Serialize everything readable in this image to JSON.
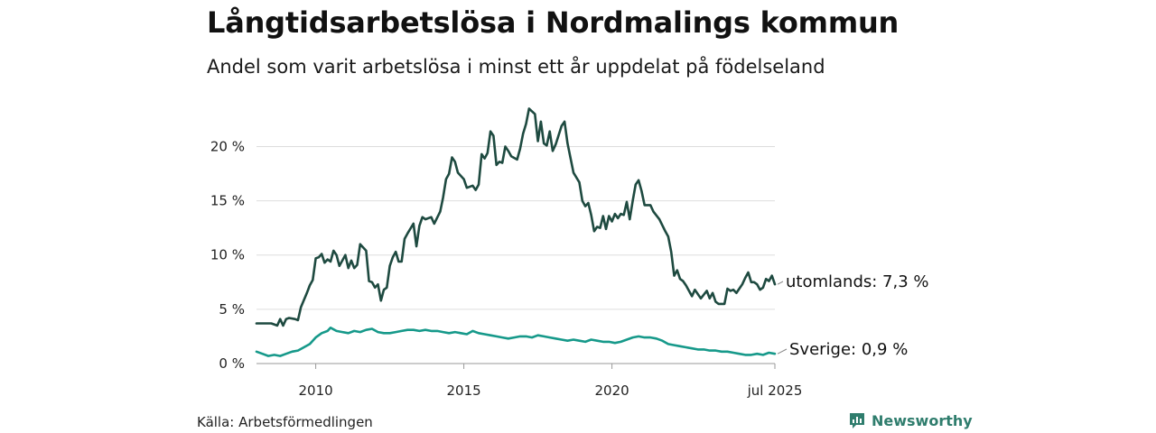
{
  "title": "Långtidsarbetslösa i Nordmalings kommun",
  "subtitle": "Andel som varit arbetslösa i minst ett år uppdelat på födelseland",
  "source": "Källa: Arbetsförmedlingen",
  "brand": {
    "name": "Newsworthy",
    "icon": "newsworthy-logo-icon"
  },
  "colors": {
    "utomlands": "#1e4a40",
    "sverige": "#16998a",
    "grid": "#dddddd",
    "axis": "#999999"
  },
  "chart_data": {
    "type": "line",
    "x_ticks": [
      {
        "x": 2010,
        "label": "2010"
      },
      {
        "x": 2015,
        "label": "2015"
      },
      {
        "x": 2020,
        "label": "2020"
      },
      {
        "x": 2025.5,
        "label": "jul 2025"
      }
    ],
    "y_ticks": [
      {
        "y": 0,
        "label": "0 %"
      },
      {
        "y": 5,
        "label": "5 %"
      },
      {
        "y": 10,
        "label": "10 %"
      },
      {
        "y": 15,
        "label": "15 %"
      },
      {
        "y": 20,
        "label": "20 %"
      }
    ],
    "xlim": [
      2008.0,
      2025.5
    ],
    "ylim": [
      0,
      23.7
    ],
    "grid": true,
    "series": [
      {
        "key": "utomlands",
        "label": "utomlands: 7,3 %",
        "points": [
          [
            2008.0,
            3.7
          ],
          [
            2008.5,
            3.7
          ],
          [
            2008.7,
            3.5
          ],
          [
            2008.8,
            4.1
          ],
          [
            2008.9,
            3.5
          ],
          [
            2009.0,
            4.1
          ],
          [
            2009.1,
            4.2
          ],
          [
            2009.3,
            4.1
          ],
          [
            2009.4,
            4.0
          ],
          [
            2009.5,
            5.2
          ],
          [
            2009.7,
            6.5
          ],
          [
            2009.8,
            7.2
          ],
          [
            2009.9,
            7.7
          ],
          [
            2010.0,
            9.7
          ],
          [
            2010.1,
            9.8
          ],
          [
            2010.2,
            10.1
          ],
          [
            2010.3,
            9.3
          ],
          [
            2010.4,
            9.6
          ],
          [
            2010.5,
            9.4
          ],
          [
            2010.6,
            10.4
          ],
          [
            2010.7,
            10.0
          ],
          [
            2010.8,
            9.0
          ],
          [
            2010.9,
            9.5
          ],
          [
            2011.0,
            10.0
          ],
          [
            2011.1,
            8.8
          ],
          [
            2011.2,
            9.5
          ],
          [
            2011.3,
            8.8
          ],
          [
            2011.4,
            9.1
          ],
          [
            2011.5,
            11.0
          ],
          [
            2011.7,
            10.4
          ],
          [
            2011.8,
            7.6
          ],
          [
            2011.9,
            7.5
          ],
          [
            2012.0,
            7.0
          ],
          [
            2012.1,
            7.3
          ],
          [
            2012.2,
            5.8
          ],
          [
            2012.3,
            6.8
          ],
          [
            2012.4,
            7.0
          ],
          [
            2012.5,
            9.0
          ],
          [
            2012.6,
            9.8
          ],
          [
            2012.7,
            10.3
          ],
          [
            2012.8,
            9.4
          ],
          [
            2012.9,
            9.4
          ],
          [
            2013.0,
            11.5
          ],
          [
            2013.1,
            12.0
          ],
          [
            2013.3,
            12.9
          ],
          [
            2013.4,
            10.8
          ],
          [
            2013.5,
            12.7
          ],
          [
            2013.6,
            13.5
          ],
          [
            2013.7,
            13.3
          ],
          [
            2013.9,
            13.5
          ],
          [
            2014.0,
            12.9
          ],
          [
            2014.2,
            14.0
          ],
          [
            2014.3,
            15.3
          ],
          [
            2014.4,
            17.0
          ],
          [
            2014.5,
            17.5
          ],
          [
            2014.6,
            19.0
          ],
          [
            2014.7,
            18.6
          ],
          [
            2014.8,
            17.6
          ],
          [
            2015.0,
            17.0
          ],
          [
            2015.1,
            16.2
          ],
          [
            2015.3,
            16.4
          ],
          [
            2015.4,
            16.0
          ],
          [
            2015.5,
            16.5
          ],
          [
            2015.6,
            19.3
          ],
          [
            2015.7,
            18.9
          ],
          [
            2015.8,
            19.4
          ],
          [
            2015.9,
            21.4
          ],
          [
            2016.0,
            21.0
          ],
          [
            2016.1,
            18.3
          ],
          [
            2016.2,
            18.6
          ],
          [
            2016.3,
            18.5
          ],
          [
            2016.4,
            20.0
          ],
          [
            2016.5,
            19.6
          ],
          [
            2016.6,
            19.1
          ],
          [
            2016.8,
            18.8
          ],
          [
            2016.9,
            19.8
          ],
          [
            2017.0,
            21.2
          ],
          [
            2017.1,
            22.1
          ],
          [
            2017.2,
            23.5
          ],
          [
            2017.4,
            23.0
          ],
          [
            2017.5,
            20.5
          ],
          [
            2017.6,
            22.3
          ],
          [
            2017.7,
            20.3
          ],
          [
            2017.8,
            20.1
          ],
          [
            2017.9,
            21.4
          ],
          [
            2018.0,
            19.6
          ],
          [
            2018.1,
            20.2
          ],
          [
            2018.3,
            21.9
          ],
          [
            2018.4,
            22.3
          ],
          [
            2018.5,
            20.3
          ],
          [
            2018.7,
            17.6
          ],
          [
            2018.9,
            16.7
          ],
          [
            2019.0,
            15.0
          ],
          [
            2019.1,
            14.5
          ],
          [
            2019.2,
            14.8
          ],
          [
            2019.3,
            13.7
          ],
          [
            2019.4,
            12.2
          ],
          [
            2019.5,
            12.6
          ],
          [
            2019.6,
            12.5
          ],
          [
            2019.7,
            13.6
          ],
          [
            2019.8,
            12.4
          ],
          [
            2019.9,
            13.6
          ],
          [
            2020.0,
            13.1
          ],
          [
            2020.1,
            13.8
          ],
          [
            2020.2,
            13.4
          ],
          [
            2020.3,
            13.8
          ],
          [
            2020.4,
            13.7
          ],
          [
            2020.5,
            14.9
          ],
          [
            2020.6,
            13.3
          ],
          [
            2020.7,
            15.0
          ],
          [
            2020.8,
            16.5
          ],
          [
            2020.9,
            16.9
          ],
          [
            2021.0,
            15.9
          ],
          [
            2021.1,
            14.6
          ],
          [
            2021.3,
            14.6
          ],
          [
            2021.4,
            14.0
          ],
          [
            2021.6,
            13.3
          ],
          [
            2021.8,
            12.2
          ],
          [
            2021.9,
            11.7
          ],
          [
            2022.0,
            10.3
          ],
          [
            2022.1,
            8.1
          ],
          [
            2022.2,
            8.6
          ],
          [
            2022.3,
            7.8
          ],
          [
            2022.4,
            7.6
          ],
          [
            2022.5,
            7.2
          ],
          [
            2022.6,
            6.7
          ],
          [
            2022.7,
            6.2
          ],
          [
            2022.8,
            6.8
          ],
          [
            2022.9,
            6.4
          ],
          [
            2023.0,
            6.0
          ],
          [
            2023.2,
            6.7
          ],
          [
            2023.3,
            6.0
          ],
          [
            2023.4,
            6.5
          ],
          [
            2023.5,
            5.7
          ],
          [
            2023.6,
            5.5
          ],
          [
            2023.8,
            5.5
          ],
          [
            2023.9,
            6.9
          ],
          [
            2024.0,
            6.7
          ],
          [
            2024.1,
            6.8
          ],
          [
            2024.2,
            6.5
          ],
          [
            2024.3,
            6.9
          ],
          [
            2024.4,
            7.3
          ],
          [
            2024.5,
            7.9
          ],
          [
            2024.6,
            8.4
          ],
          [
            2024.7,
            7.5
          ],
          [
            2024.8,
            7.5
          ],
          [
            2024.9,
            7.3
          ],
          [
            2025.0,
            6.8
          ],
          [
            2025.1,
            7.0
          ],
          [
            2025.2,
            7.8
          ],
          [
            2025.3,
            7.6
          ],
          [
            2025.4,
            8.1
          ],
          [
            2025.5,
            7.3
          ]
        ]
      },
      {
        "key": "sverige",
        "label": "Sverige: 0,9 %",
        "points": [
          [
            2008.0,
            1.1
          ],
          [
            2008.2,
            0.9
          ],
          [
            2008.4,
            0.7
          ],
          [
            2008.6,
            0.8
          ],
          [
            2008.8,
            0.7
          ],
          [
            2009.0,
            0.9
          ],
          [
            2009.2,
            1.1
          ],
          [
            2009.4,
            1.2
          ],
          [
            2009.6,
            1.5
          ],
          [
            2009.8,
            1.8
          ],
          [
            2010.0,
            2.4
          ],
          [
            2010.2,
            2.8
          ],
          [
            2010.4,
            3.0
          ],
          [
            2010.5,
            3.3
          ],
          [
            2010.7,
            3.0
          ],
          [
            2010.9,
            2.9
          ],
          [
            2011.1,
            2.8
          ],
          [
            2011.3,
            3.0
          ],
          [
            2011.5,
            2.9
          ],
          [
            2011.7,
            3.1
          ],
          [
            2011.9,
            3.2
          ],
          [
            2012.1,
            2.9
          ],
          [
            2012.3,
            2.8
          ],
          [
            2012.5,
            2.8
          ],
          [
            2012.7,
            2.9
          ],
          [
            2012.9,
            3.0
          ],
          [
            2013.1,
            3.1
          ],
          [
            2013.3,
            3.1
          ],
          [
            2013.5,
            3.0
          ],
          [
            2013.7,
            3.1
          ],
          [
            2013.9,
            3.0
          ],
          [
            2014.1,
            3.0
          ],
          [
            2014.3,
            2.9
          ],
          [
            2014.5,
            2.8
          ],
          [
            2014.7,
            2.9
          ],
          [
            2014.9,
            2.8
          ],
          [
            2015.1,
            2.7
          ],
          [
            2015.3,
            3.0
          ],
          [
            2015.5,
            2.8
          ],
          [
            2015.7,
            2.7
          ],
          [
            2015.9,
            2.6
          ],
          [
            2016.1,
            2.5
          ],
          [
            2016.3,
            2.4
          ],
          [
            2016.5,
            2.3
          ],
          [
            2016.7,
            2.4
          ],
          [
            2016.9,
            2.5
          ],
          [
            2017.1,
            2.5
          ],
          [
            2017.3,
            2.4
          ],
          [
            2017.5,
            2.6
          ],
          [
            2017.7,
            2.5
          ],
          [
            2017.9,
            2.4
          ],
          [
            2018.1,
            2.3
          ],
          [
            2018.3,
            2.2
          ],
          [
            2018.5,
            2.1
          ],
          [
            2018.7,
            2.2
          ],
          [
            2018.9,
            2.1
          ],
          [
            2019.1,
            2.0
          ],
          [
            2019.3,
            2.2
          ],
          [
            2019.5,
            2.1
          ],
          [
            2019.7,
            2.0
          ],
          [
            2019.9,
            2.0
          ],
          [
            2020.1,
            1.9
          ],
          [
            2020.3,
            2.0
          ],
          [
            2020.5,
            2.2
          ],
          [
            2020.7,
            2.4
          ],
          [
            2020.9,
            2.5
          ],
          [
            2021.1,
            2.4
          ],
          [
            2021.3,
            2.4
          ],
          [
            2021.5,
            2.3
          ],
          [
            2021.7,
            2.1
          ],
          [
            2021.9,
            1.8
          ],
          [
            2022.1,
            1.7
          ],
          [
            2022.3,
            1.6
          ],
          [
            2022.5,
            1.5
          ],
          [
            2022.7,
            1.4
          ],
          [
            2022.9,
            1.3
          ],
          [
            2023.1,
            1.3
          ],
          [
            2023.3,
            1.2
          ],
          [
            2023.5,
            1.2
          ],
          [
            2023.7,
            1.1
          ],
          [
            2023.9,
            1.1
          ],
          [
            2024.1,
            1.0
          ],
          [
            2024.3,
            0.9
          ],
          [
            2024.5,
            0.8
          ],
          [
            2024.7,
            0.8
          ],
          [
            2024.9,
            0.9
          ],
          [
            2025.1,
            0.8
          ],
          [
            2025.3,
            1.0
          ],
          [
            2025.5,
            0.9
          ]
        ]
      }
    ]
  }
}
